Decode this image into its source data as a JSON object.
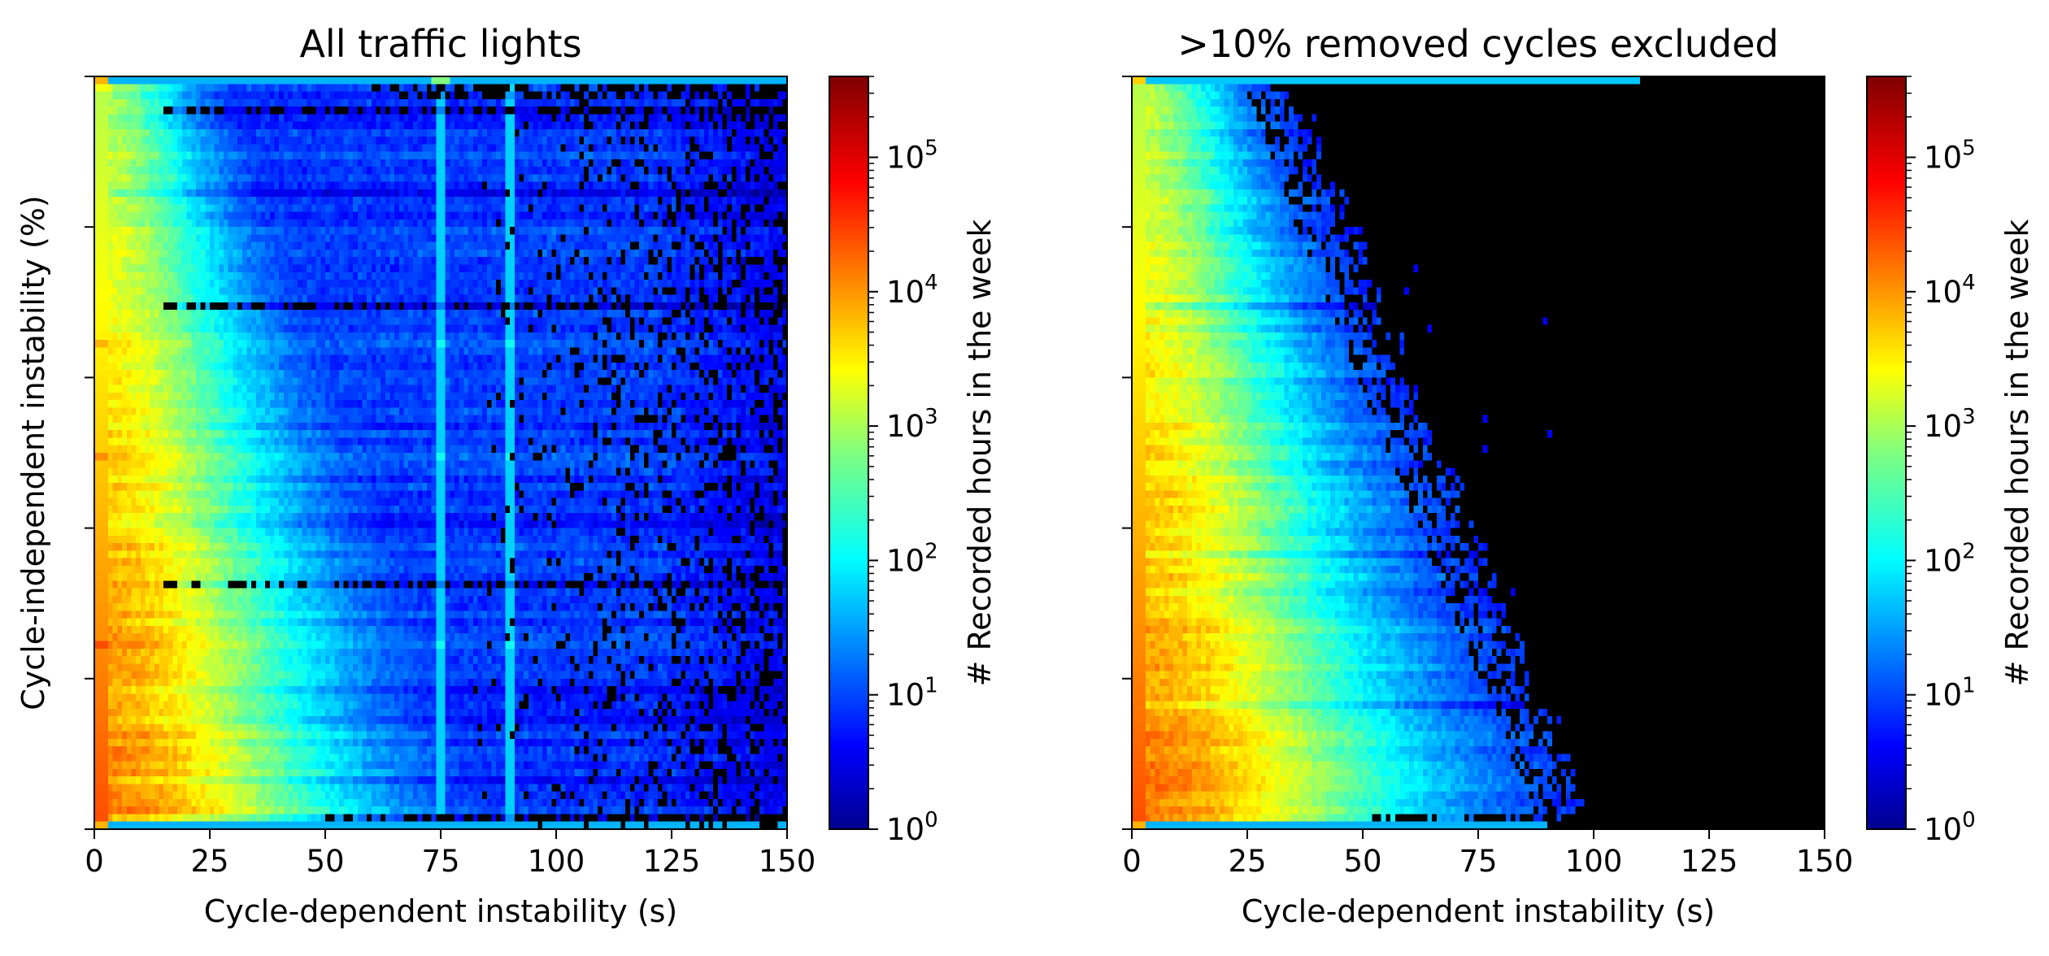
{
  "chart_data": [
    {
      "type": "heatmap",
      "title": "All traffic lights",
      "xlabel": "Cycle-dependent instability (s)",
      "ylabel": "Cycle-independent instability (%)",
      "xlim": [
        0,
        150
      ],
      "xticks": [
        "0",
        "25",
        "50",
        "75",
        "100",
        "125",
        "150"
      ],
      "y_tick_labels_shown": false,
      "y_tick_count": 6,
      "colorscale": "jet",
      "colorbar": {
        "label": "# Recorded hours in the week",
        "scale": "log",
        "ticks": [
          {
            "base": "10",
            "exp": "0",
            "value": 1
          },
          {
            "base": "10",
            "exp": "1",
            "value": 10
          },
          {
            "base": "10",
            "exp": "2",
            "value": 100
          },
          {
            "base": "10",
            "exp": "3",
            "value": 1000
          },
          {
            "base": "10",
            "exp": "4",
            "value": 10000
          },
          {
            "base": "10",
            "exp": "5",
            "value": 100000
          }
        ],
        "max_value": 400000
      },
      "features": {
        "vertical_lines_at_s": [
          75,
          90
        ],
        "spread": "wide"
      }
    },
    {
      "type": "heatmap",
      "title": ">10% removed cycles excluded",
      "xlabel": "Cycle-dependent instability (s)",
      "ylabel": "",
      "xlim": [
        0,
        150
      ],
      "xticks": [
        "0",
        "25",
        "50",
        "75",
        "100",
        "125",
        "150"
      ],
      "y_tick_labels_shown": false,
      "y_tick_count": 6,
      "colorscale": "jet",
      "colorbar": {
        "label": "# Recorded hours in the week",
        "scale": "log",
        "ticks": [
          {
            "base": "10",
            "exp": "0",
            "value": 1
          },
          {
            "base": "10",
            "exp": "1",
            "value": 10
          },
          {
            "base": "10",
            "exp": "2",
            "value": 100
          },
          {
            "base": "10",
            "exp": "3",
            "value": 1000
          },
          {
            "base": "10",
            "exp": "4",
            "value": 10000
          },
          {
            "base": "10",
            "exp": "5",
            "value": 100000
          }
        ],
        "max_value": 400000
      },
      "features": {
        "vertical_lines_at_s": [],
        "spread": "narrow"
      }
    }
  ],
  "colors": {
    "background_empty": "#000000",
    "axis": "#000000"
  }
}
